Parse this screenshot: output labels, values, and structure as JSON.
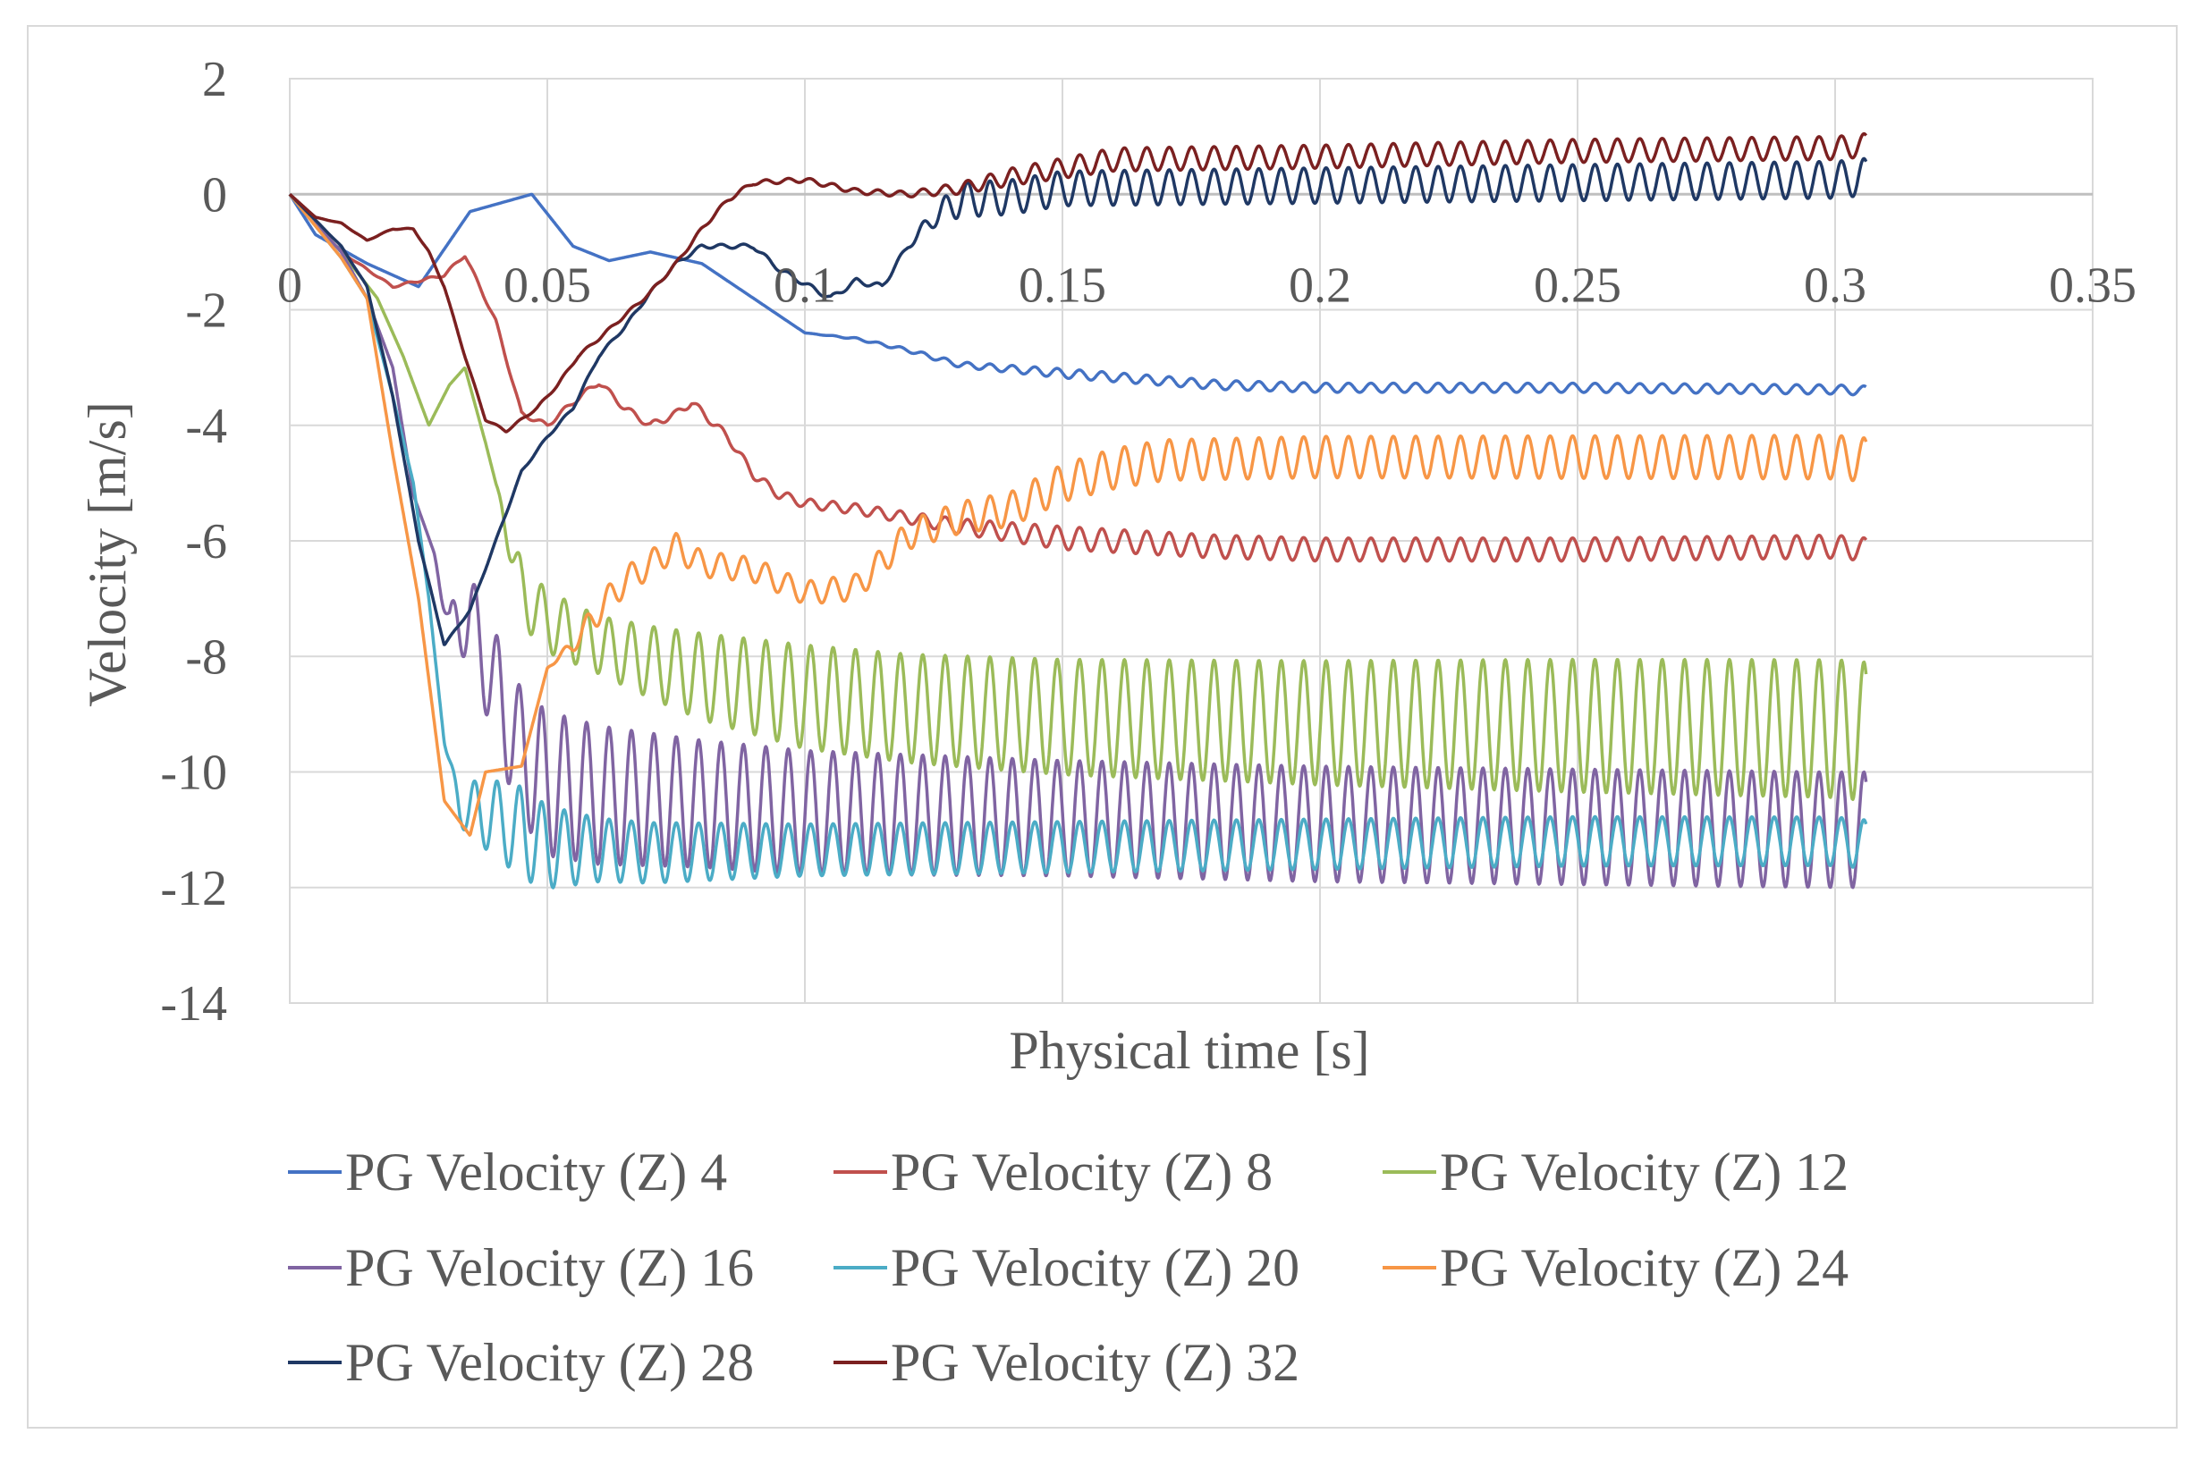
{
  "chart_data": {
    "type": "line",
    "title": "",
    "xlabel": "Physical time [s]",
    "ylabel": "Velocity [m/s]",
    "xlim": [
      0,
      0.35
    ],
    "ylim": [
      -14,
      2
    ],
    "xticks": [
      0,
      0.05,
      0.1,
      0.15,
      0.2,
      0.25,
      0.3,
      0.35
    ],
    "xtick_labels": [
      "0",
      "0.05",
      "0.1",
      "0.15",
      "0.2",
      "0.25",
      "0.3",
      "0.35"
    ],
    "yticks": [
      2,
      0,
      -2,
      -4,
      -6,
      -8,
      -10,
      -12,
      -14
    ],
    "ytick_labels": [
      "2",
      "0",
      "-2",
      "-4",
      "-6",
      "-8",
      "-10",
      "-12",
      "-14"
    ],
    "grid": true,
    "legend_position": "bottom",
    "series": [
      {
        "name": "PG Velocity (Z) 4",
        "color": "#4472c4",
        "base": [
          [
            0,
            0
          ],
          [
            0.005,
            -0.7
          ],
          [
            0.015,
            -1.2
          ],
          [
            0.025,
            -1.6
          ],
          [
            0.035,
            -0.3
          ],
          [
            0.047,
            0.0
          ],
          [
            0.055,
            -0.9
          ],
          [
            0.062,
            -1.15
          ],
          [
            0.07,
            -1.0
          ],
          [
            0.08,
            -1.2
          ],
          [
            0.09,
            -1.8
          ],
          [
            0.1,
            -2.4
          ],
          [
            0.11,
            -2.5
          ],
          [
            0.12,
            -2.7
          ],
          [
            0.13,
            -2.95
          ],
          [
            0.15,
            -3.1
          ],
          [
            0.18,
            -3.3
          ],
          [
            0.2,
            -3.35
          ],
          [
            0.25,
            -3.35
          ],
          [
            0.3,
            -3.38
          ],
          [
            0.306,
            -3.4
          ]
        ],
        "osc": [
          [
            0,
            0
          ],
          [
            0.1,
            0
          ],
          [
            0.15,
            0.08
          ],
          [
            0.306,
            0.08
          ]
        ]
      },
      {
        "name": "PG Velocity (Z) 8",
        "color": "#c0504d",
        "base": [
          [
            0,
            0
          ],
          [
            0.01,
            -1.0
          ],
          [
            0.02,
            -1.6
          ],
          [
            0.03,
            -1.4
          ],
          [
            0.034,
            -1.05
          ],
          [
            0.04,
            -2.2
          ],
          [
            0.045,
            -3.8
          ],
          [
            0.05,
            -4.0
          ],
          [
            0.055,
            -3.6
          ],
          [
            0.06,
            -3.25
          ],
          [
            0.065,
            -3.7
          ],
          [
            0.07,
            -4.0
          ],
          [
            0.075,
            -3.8
          ],
          [
            0.078,
            -3.6
          ],
          [
            0.085,
            -4.2
          ],
          [
            0.09,
            -4.85
          ],
          [
            0.095,
            -5.2
          ],
          [
            0.1,
            -5.35
          ],
          [
            0.11,
            -5.45
          ],
          [
            0.12,
            -5.6
          ],
          [
            0.13,
            -5.75
          ],
          [
            0.15,
            -5.95
          ],
          [
            0.18,
            -6.1
          ],
          [
            0.2,
            -6.15
          ],
          [
            0.25,
            -6.15
          ],
          [
            0.3,
            -6.1
          ],
          [
            0.306,
            -6.15
          ]
        ],
        "osc": [
          [
            0,
            0
          ],
          [
            0.12,
            0.1
          ],
          [
            0.15,
            0.2
          ],
          [
            0.306,
            0.2
          ]
        ]
      },
      {
        "name": "PG Velocity (Z) 12",
        "color": "#9bbb59",
        "base": [
          [
            0,
            0
          ],
          [
            0.01,
            -1.0
          ],
          [
            0.017,
            -1.8
          ],
          [
            0.022,
            -2.8
          ],
          [
            0.027,
            -4.0
          ],
          [
            0.031,
            -3.3
          ],
          [
            0.034,
            -3.0
          ],
          [
            0.038,
            -4.3
          ],
          [
            0.04,
            -5.0
          ],
          [
            0.045,
            -6.9
          ],
          [
            0.05,
            -7.4
          ],
          [
            0.06,
            -7.8
          ],
          [
            0.07,
            -8.1
          ],
          [
            0.08,
            -8.35
          ],
          [
            0.1,
            -8.7
          ],
          [
            0.12,
            -8.9
          ],
          [
            0.15,
            -9.05
          ],
          [
            0.2,
            -9.15
          ],
          [
            0.25,
            -9.2
          ],
          [
            0.3,
            -9.25
          ],
          [
            0.306,
            -9.3
          ]
        ],
        "osc": [
          [
            0,
            0
          ],
          [
            0.04,
            0
          ],
          [
            0.045,
            0.55
          ],
          [
            0.06,
            0.5
          ],
          [
            0.08,
            0.75
          ],
          [
            0.1,
            0.9
          ],
          [
            0.15,
            1.0
          ],
          [
            0.25,
            1.15
          ],
          [
            0.306,
            1.2
          ]
        ]
      },
      {
        "name": "PG Velocity (Z) 16",
        "color": "#8064a2",
        "base": [
          [
            0,
            0
          ],
          [
            0.01,
            -1.0
          ],
          [
            0.015,
            -1.8
          ],
          [
            0.02,
            -3.0
          ],
          [
            0.024,
            -5.2
          ],
          [
            0.028,
            -6.2
          ],
          [
            0.031,
            -7.5
          ],
          [
            0.035,
            -7.3
          ],
          [
            0.04,
            -8.6
          ],
          [
            0.045,
            -9.7
          ],
          [
            0.05,
            -10.2
          ],
          [
            0.06,
            -10.4
          ],
          [
            0.08,
            -10.55
          ],
          [
            0.1,
            -10.7
          ],
          [
            0.15,
            -10.8
          ],
          [
            0.2,
            -10.9
          ],
          [
            0.25,
            -10.95
          ],
          [
            0.3,
            -11.0
          ],
          [
            0.306,
            -11.0
          ]
        ],
        "osc": [
          [
            0,
            0
          ],
          [
            0.028,
            0
          ],
          [
            0.033,
            0.6
          ],
          [
            0.04,
            1.0
          ],
          [
            0.05,
            1.25
          ],
          [
            0.08,
            1.1
          ],
          [
            0.15,
            1.0
          ],
          [
            0.306,
            1.0
          ]
        ]
      },
      {
        "name": "PG Velocity (Z) 20",
        "color": "#4bacc6",
        "base": [
          [
            0,
            0
          ],
          [
            0.01,
            -1.1
          ],
          [
            0.015,
            -1.8
          ],
          [
            0.02,
            -3.5
          ],
          [
            0.024,
            -5.0
          ],
          [
            0.027,
            -7.0
          ],
          [
            0.03,
            -9.5
          ],
          [
            0.033,
            -10.6
          ],
          [
            0.04,
            -10.8
          ],
          [
            0.05,
            -11.3
          ],
          [
            0.07,
            -11.4
          ],
          [
            0.1,
            -11.35
          ],
          [
            0.15,
            -11.3
          ],
          [
            0.2,
            -11.25
          ],
          [
            0.25,
            -11.2
          ],
          [
            0.3,
            -11.2
          ],
          [
            0.306,
            -11.25
          ]
        ],
        "osc": [
          [
            0,
            0
          ],
          [
            0.03,
            0
          ],
          [
            0.035,
            0.5
          ],
          [
            0.045,
            0.8
          ],
          [
            0.06,
            0.55
          ],
          [
            0.1,
            0.45
          ],
          [
            0.306,
            0.42
          ]
        ]
      },
      {
        "name": "PG Velocity (Z) 24",
        "color": "#f79646",
        "base": [
          [
            0,
            0
          ],
          [
            0.01,
            -1.1
          ],
          [
            0.015,
            -1.8
          ],
          [
            0.02,
            -4.5
          ],
          [
            0.025,
            -7.0
          ],
          [
            0.03,
            -10.5
          ],
          [
            0.035,
            -11.1
          ],
          [
            0.038,
            -10.0
          ],
          [
            0.045,
            -9.9
          ],
          [
            0.05,
            -8.2
          ],
          [
            0.055,
            -7.8
          ],
          [
            0.06,
            -7.2
          ],
          [
            0.065,
            -6.7
          ],
          [
            0.07,
            -6.4
          ],
          [
            0.075,
            -6.1
          ],
          [
            0.08,
            -6.4
          ],
          [
            0.09,
            -6.5
          ],
          [
            0.1,
            -6.9
          ],
          [
            0.11,
            -6.8
          ],
          [
            0.12,
            -5.9
          ],
          [
            0.13,
            -5.6
          ],
          [
            0.14,
            -5.45
          ],
          [
            0.15,
            -5.0
          ],
          [
            0.16,
            -4.75
          ],
          [
            0.17,
            -4.6
          ],
          [
            0.2,
            -4.55
          ],
          [
            0.25,
            -4.55
          ],
          [
            0.3,
            -4.55
          ],
          [
            0.306,
            -4.6
          ]
        ],
        "osc": [
          [
            0,
            0
          ],
          [
            0.05,
            0
          ],
          [
            0.06,
            0.25
          ],
          [
            0.1,
            0.2
          ],
          [
            0.14,
            0.3
          ],
          [
            0.16,
            0.35
          ],
          [
            0.306,
            0.38
          ]
        ]
      },
      {
        "name": "PG Velocity (Z) 28",
        "color": "#1f3864",
        "base": [
          [
            0,
            0
          ],
          [
            0.01,
            -0.9
          ],
          [
            0.015,
            -1.6
          ],
          [
            0.02,
            -3.5
          ],
          [
            0.025,
            -6.0
          ],
          [
            0.03,
            -7.8
          ],
          [
            0.035,
            -7.2
          ],
          [
            0.04,
            -6.0
          ],
          [
            0.045,
            -4.8
          ],
          [
            0.05,
            -4.2
          ],
          [
            0.055,
            -3.7
          ],
          [
            0.06,
            -2.8
          ],
          [
            0.065,
            -2.3
          ],
          [
            0.07,
            -1.7
          ],
          [
            0.075,
            -1.2
          ],
          [
            0.08,
            -0.9
          ],
          [
            0.09,
            -0.9
          ],
          [
            0.095,
            -1.3
          ],
          [
            0.1,
            -1.55
          ],
          [
            0.105,
            -1.8
          ],
          [
            0.11,
            -1.5
          ],
          [
            0.115,
            -1.6
          ],
          [
            0.12,
            -0.9
          ],
          [
            0.125,
            -0.4
          ],
          [
            0.13,
            -0.1
          ],
          [
            0.14,
            -0.05
          ],
          [
            0.15,
            0.1
          ],
          [
            0.2,
            0.15
          ],
          [
            0.25,
            0.2
          ],
          [
            0.3,
            0.25
          ],
          [
            0.306,
            0.3
          ]
        ],
        "osc": [
          [
            0,
            0
          ],
          [
            0.12,
            0.05
          ],
          [
            0.13,
            0.3
          ],
          [
            0.15,
            0.3
          ],
          [
            0.306,
            0.32
          ]
        ]
      },
      {
        "name": "PG Velocity (Z) 32",
        "color": "#7b2020",
        "base": [
          [
            0,
            0
          ],
          [
            0.005,
            -0.4
          ],
          [
            0.01,
            -0.5
          ],
          [
            0.015,
            -0.8
          ],
          [
            0.02,
            -0.6
          ],
          [
            0.024,
            -0.6
          ],
          [
            0.027,
            -1.0
          ],
          [
            0.03,
            -1.6
          ],
          [
            0.034,
            -2.8
          ],
          [
            0.038,
            -3.9
          ],
          [
            0.042,
            -4.1
          ],
          [
            0.048,
            -3.7
          ],
          [
            0.052,
            -3.3
          ],
          [
            0.056,
            -2.8
          ],
          [
            0.06,
            -2.5
          ],
          [
            0.065,
            -2.1
          ],
          [
            0.07,
            -1.7
          ],
          [
            0.075,
            -1.2
          ],
          [
            0.08,
            -0.6
          ],
          [
            0.085,
            -0.1
          ],
          [
            0.09,
            0.2
          ],
          [
            0.1,
            0.25
          ],
          [
            0.11,
            0.05
          ],
          [
            0.12,
            0.0
          ],
          [
            0.13,
            0.1
          ],
          [
            0.14,
            0.3
          ],
          [
            0.15,
            0.45
          ],
          [
            0.16,
            0.6
          ],
          [
            0.2,
            0.65
          ],
          [
            0.25,
            0.75
          ],
          [
            0.3,
            0.8
          ],
          [
            0.306,
            0.85
          ]
        ],
        "osc": [
          [
            0,
            0
          ],
          [
            0.12,
            0.05
          ],
          [
            0.14,
            0.15
          ],
          [
            0.16,
            0.2
          ],
          [
            0.306,
            0.2
          ]
        ]
      }
    ],
    "osc_period": 0.00435
  },
  "legend": {
    "items": [
      "PG Velocity (Z) 4",
      "PG Velocity (Z) 8",
      "PG Velocity (Z) 12",
      "PG Velocity (Z) 16",
      "PG Velocity (Z) 20",
      "PG Velocity (Z) 24",
      "PG Velocity (Z) 28",
      "PG Velocity (Z) 32"
    ]
  }
}
